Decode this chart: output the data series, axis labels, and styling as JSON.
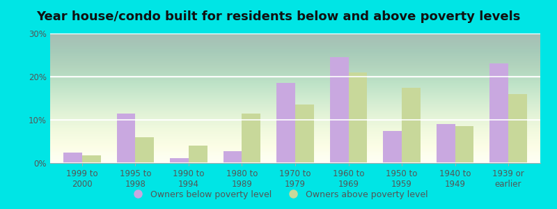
{
  "title": "Year house/condo built for residents below and above poverty levels",
  "categories": [
    "1999 to\n2000",
    "1995 to\n1998",
    "1990 to\n1994",
    "1980 to\n1989",
    "1970 to\n1979",
    "1960 to\n1969",
    "1950 to\n1959",
    "1940 to\n1949",
    "1939 or\nearlier"
  ],
  "below_poverty": [
    2.5,
    11.5,
    1.2,
    2.7,
    18.5,
    24.5,
    7.5,
    9.0,
    23.0
  ],
  "above_poverty": [
    1.8,
    6.0,
    4.0,
    11.5,
    13.5,
    21.0,
    17.5,
    8.5,
    16.0
  ],
  "below_color": "#c9a8e0",
  "above_color": "#c8d89a",
  "outer_bg": "#00e5e5",
  "ylim": [
    0,
    30
  ],
  "yticks": [
    0,
    10,
    20,
    30
  ],
  "legend_below_label": "Owners below poverty level",
  "legend_above_label": "Owners above poverty level",
  "title_fontsize": 13,
  "tick_fontsize": 8.5,
  "legend_fontsize": 9,
  "bar_width": 0.35
}
